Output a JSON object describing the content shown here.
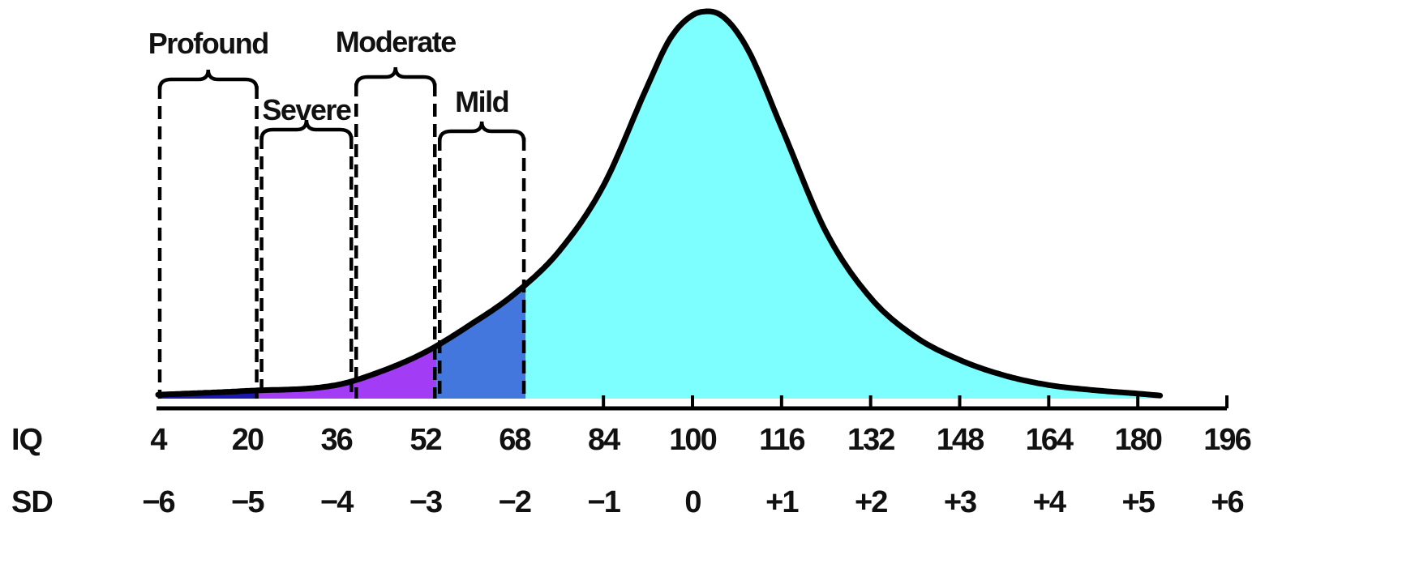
{
  "chart_data": {
    "type": "area",
    "title": "",
    "xlabel": "",
    "ylabel": "",
    "row_labels": {
      "iq": "IQ",
      "sd": "SD"
    },
    "iq_ticks": [
      "4",
      "20",
      "36",
      "52",
      "68",
      "84",
      "100",
      "116",
      "132",
      "148",
      "164",
      "180",
      "196"
    ],
    "sd_ticks": [
      "−6",
      "−5",
      "−4",
      "−3",
      "−2",
      "−1",
      "0",
      "+1",
      "+2",
      "+3",
      "+4",
      "+5",
      "+6"
    ],
    "xlim": [
      4,
      196
    ],
    "curve": {
      "x": [
        4,
        20,
        36,
        44,
        52,
        60,
        68,
        76,
        84,
        92,
        96,
        100,
        103,
        106,
        110,
        116,
        124,
        132,
        140,
        148,
        156,
        164,
        172,
        180,
        184
      ],
      "y": [
        0.01,
        0.02,
        0.035,
        0.07,
        0.12,
        0.19,
        0.27,
        0.38,
        0.55,
        0.81,
        0.93,
        0.99,
        1.0,
        0.98,
        0.9,
        0.7,
        0.43,
        0.26,
        0.16,
        0.1,
        0.06,
        0.035,
        0.022,
        0.013,
        0.008
      ]
    },
    "bands": [
      {
        "name": "Profound",
        "from": 4,
        "to": 22,
        "color": "#1A1AB0"
      },
      {
        "name": "Severe",
        "from": 22,
        "to": 39,
        "color": "#A33DF5"
      },
      {
        "name": "Moderate",
        "from": 39,
        "to": 54,
        "color": "#A33DF5"
      },
      {
        "name": "Mild",
        "from": 54,
        "to": 70,
        "color": "#4477DD"
      }
    ],
    "normal_color": "#7DFFFF"
  }
}
